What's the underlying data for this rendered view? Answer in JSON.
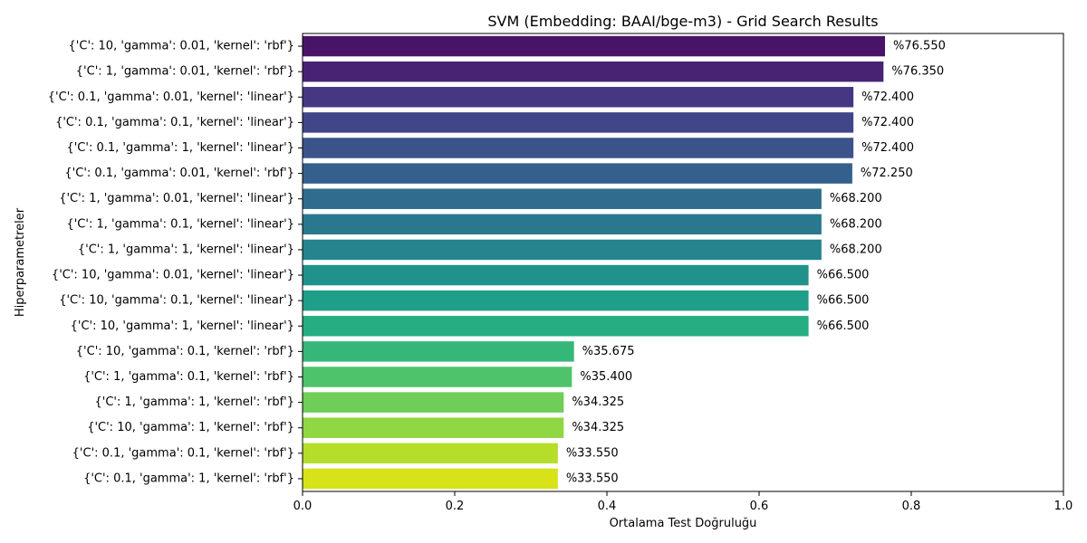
{
  "chart_data": {
    "type": "bar",
    "orientation": "horizontal",
    "title": "SVM (Embedding: BAAI/bge-m3) - Grid Search Results",
    "xlabel": "Ortalama Test Doğruluğu",
    "ylabel": "Hiperparametreler",
    "xlim": [
      0,
      1.0
    ],
    "xticks": [
      "0.0",
      "0.2",
      "0.4",
      "0.6",
      "0.8",
      "1.0"
    ],
    "grid": false,
    "colormap": "viridis",
    "categories": [
      "{'C': 10, 'gamma': 0.01, 'kernel': 'rbf'}",
      "{'C': 1, 'gamma': 0.01, 'kernel': 'rbf'}",
      "{'C': 0.1, 'gamma': 0.01, 'kernel': 'linear'}",
      "{'C': 0.1, 'gamma': 0.1, 'kernel': 'linear'}",
      "{'C': 0.1, 'gamma': 1, 'kernel': 'linear'}",
      "{'C': 0.1, 'gamma': 0.01, 'kernel': 'rbf'}",
      "{'C': 1, 'gamma': 0.01, 'kernel': 'linear'}",
      "{'C': 1, 'gamma': 0.1, 'kernel': 'linear'}",
      "{'C': 1, 'gamma': 1, 'kernel': 'linear'}",
      "{'C': 10, 'gamma': 0.01, 'kernel': 'linear'}",
      "{'C': 10, 'gamma': 0.1, 'kernel': 'linear'}",
      "{'C': 10, 'gamma': 1, 'kernel': 'linear'}",
      "{'C': 10, 'gamma': 0.1, 'kernel': 'rbf'}",
      "{'C': 1, 'gamma': 0.1, 'kernel': 'rbf'}",
      "{'C': 1, 'gamma': 1, 'kernel': 'rbf'}",
      "{'C': 10, 'gamma': 1, 'kernel': 'rbf'}",
      "{'C': 0.1, 'gamma': 0.1, 'kernel': 'rbf'}",
      "{'C': 0.1, 'gamma': 1, 'kernel': 'rbf'}"
    ],
    "values": [
      0.7655,
      0.7635,
      0.724,
      0.724,
      0.724,
      0.7225,
      0.682,
      0.682,
      0.682,
      0.665,
      0.665,
      0.665,
      0.35675,
      0.354,
      0.34325,
      0.34325,
      0.3355,
      0.3355
    ],
    "data_labels": [
      "%76.550",
      "%76.350",
      "%72.400",
      "%72.400",
      "%72.400",
      "%72.250",
      "%68.200",
      "%68.200",
      "%68.200",
      "%66.500",
      "%66.500",
      "%66.500",
      "%35.675",
      "%35.400",
      "%34.325",
      "%34.325",
      "%33.550",
      "%33.550"
    ],
    "colors": [
      "#481467",
      "#482374",
      "#453781",
      "#404688",
      "#3b528b",
      "#355f8d",
      "#2f6c8e",
      "#2a788e",
      "#25848e",
      "#21918c",
      "#1f9e89",
      "#26ad81",
      "#35b779",
      "#4ec36b",
      "#6ece58",
      "#90d743",
      "#b5de2b",
      "#d8e219"
    ]
  }
}
